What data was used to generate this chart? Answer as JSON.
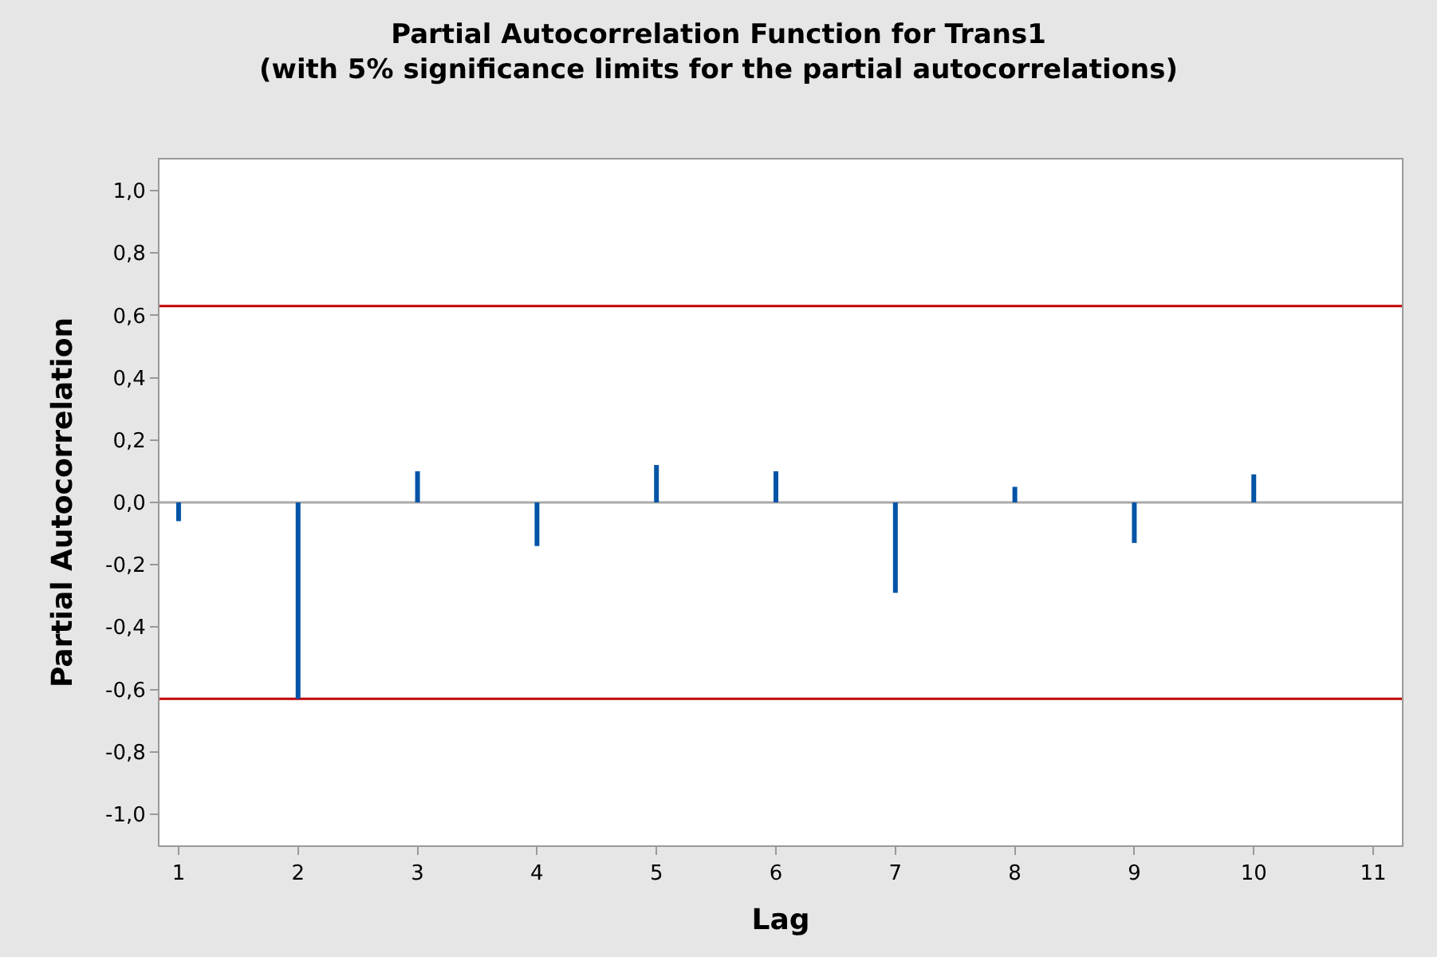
{
  "chart_data": {
    "type": "bar",
    "title": "Partial Autocorrelation Function for Trans1",
    "subtitle": "(with 5% significance limits for the partial autocorrelations)",
    "xlabel": "Lag",
    "ylabel": "Partial Autocorrelation",
    "x": [
      1,
      2,
      3,
      4,
      5,
      6,
      7,
      8,
      9,
      10
    ],
    "values": [
      -0.06,
      -0.63,
      0.1,
      -0.14,
      0.12,
      0.1,
      -0.29,
      0.05,
      -0.13,
      0.09
    ],
    "color": "#0054a6",
    "xlim": [
      0.84,
      11.24
    ],
    "xticks": [
      1,
      2,
      3,
      4,
      5,
      6,
      7,
      8,
      9,
      10,
      11
    ],
    "ylim": [
      -1.1,
      1.1
    ],
    "yticks": [
      {
        "value": -1.0,
        "label": "-1,0"
      },
      {
        "value": -0.8,
        "label": "-0,8"
      },
      {
        "value": -0.6,
        "label": "-0,6"
      },
      {
        "value": -0.4,
        "label": "-0,4"
      },
      {
        "value": -0.2,
        "label": "-0,2"
      },
      {
        "value": 0.0,
        "label": "0,0"
      },
      {
        "value": 0.2,
        "label": "0,2"
      },
      {
        "value": 0.4,
        "label": "0,4"
      },
      {
        "value": 0.6,
        "label": "0,6"
      },
      {
        "value": 0.8,
        "label": "0,8"
      },
      {
        "value": 1.0,
        "label": "1,0"
      }
    ],
    "ref_lines": [
      {
        "axis": "y",
        "value": 0.63,
        "color": "#c00000"
      },
      {
        "axis": "y",
        "value": -0.63,
        "color": "#c00000"
      },
      {
        "axis": "y",
        "value": 0,
        "color": "#aaaaaa"
      }
    ]
  }
}
